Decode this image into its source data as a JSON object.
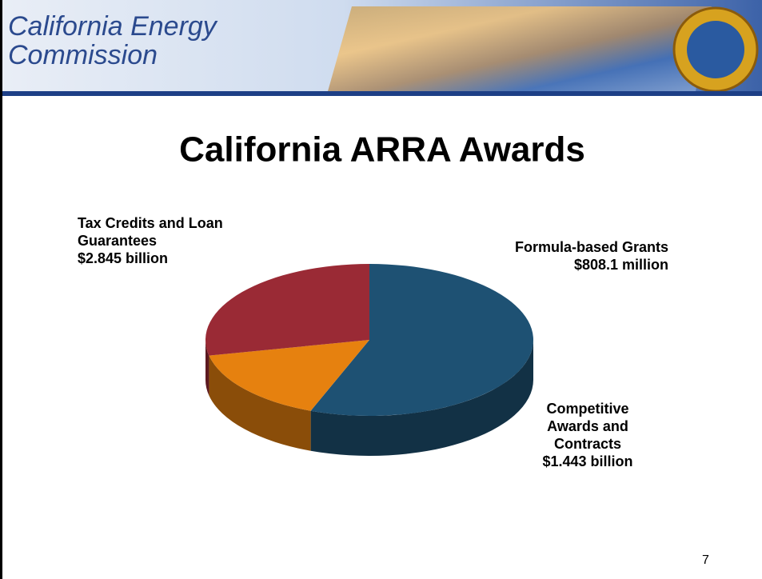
{
  "header": {
    "lines": [
      "California Energy",
      "Commission"
    ]
  },
  "chart_data": {
    "type": "pie",
    "title": "California ARRA Awards",
    "categories": [
      "Tax Credits and Loan Guarantees",
      "Formula-based Grants",
      "Competitive Awards and Contracts"
    ],
    "values": [
      2845,
      808.1,
      1443
    ],
    "value_labels": [
      "$2.845 billion",
      "$808.1 million",
      "$1.443 billion"
    ],
    "colors": [
      "#1e5173",
      "#e6810f",
      "#9a2a35"
    ]
  },
  "page_number": 7
}
